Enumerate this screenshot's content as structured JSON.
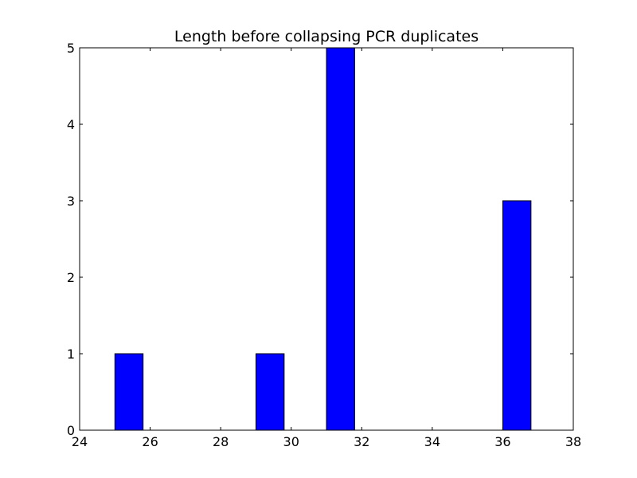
{
  "chart_data": {
    "type": "bar",
    "title": "Length before collapsing PCR duplicates",
    "xlabel": "",
    "ylabel": "",
    "xlim": [
      24,
      38
    ],
    "ylim": [
      0,
      5
    ],
    "xticks": [
      24,
      26,
      28,
      30,
      32,
      34,
      36,
      38
    ],
    "yticks": [
      0,
      1,
      2,
      3,
      4,
      5
    ],
    "bars": [
      {
        "x_start": 25.0,
        "x_end": 25.8,
        "value": 1
      },
      {
        "x_start": 29.0,
        "x_end": 29.8,
        "value": 1
      },
      {
        "x_start": 31.0,
        "x_end": 31.8,
        "value": 5
      },
      {
        "x_start": 36.0,
        "x_end": 36.8,
        "value": 3
      }
    ],
    "bar_color": "#0000ff",
    "edge_color": "#000000",
    "grid": false,
    "legend": "none"
  }
}
